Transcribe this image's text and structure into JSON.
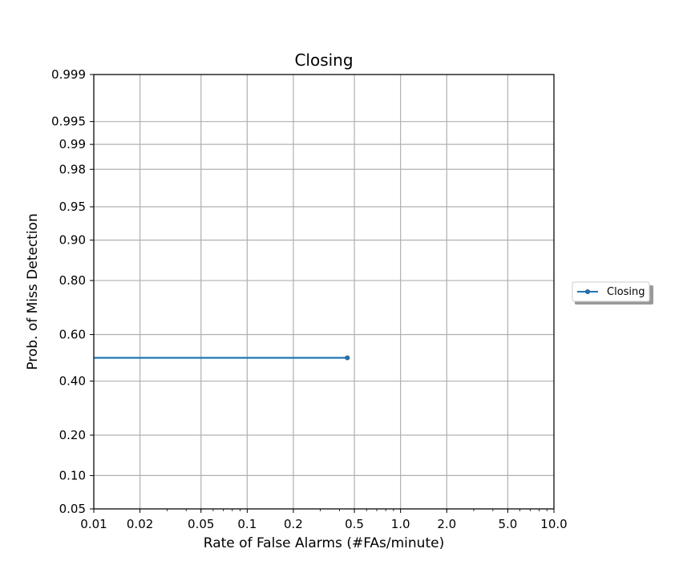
{
  "chart_data": {
    "type": "line",
    "title": "Closing",
    "xlabel": "Rate of False Alarms (#FAs/minute)",
    "ylabel": "Prob. of Miss Detection",
    "x_scale": "log",
    "y_scale": "normal-deviate",
    "xlim": [
      0.01,
      10.0
    ],
    "ylim": [
      0.05,
      0.999
    ],
    "x_ticks": [
      0.01,
      0.02,
      0.05,
      0.1,
      0.2,
      0.5,
      1.0,
      2.0,
      5.0,
      10.0
    ],
    "x_tick_labels": [
      "0.01",
      "0.02",
      "0.05",
      "0.1",
      "0.2",
      "0.5",
      "1.0",
      "2.0",
      "5.0",
      "10.0"
    ],
    "y_ticks": [
      0.05,
      0.1,
      0.2,
      0.4,
      0.6,
      0.8,
      0.9,
      0.95,
      0.98,
      0.99,
      0.995,
      0.999
    ],
    "y_tick_labels": [
      "0.05",
      "0.10",
      "0.20",
      "0.40",
      "0.60",
      "0.80",
      "0.90",
      "0.95",
      "0.98",
      "0.99",
      "0.995",
      "0.999"
    ],
    "grid": true,
    "legend_position": "right, outside plot",
    "series": [
      {
        "name": "Closing",
        "color": "#1f77b4",
        "marker": "point",
        "x": [
          0.01,
          0.45
        ],
        "y": [
          0.5,
          0.5
        ]
      }
    ]
  }
}
